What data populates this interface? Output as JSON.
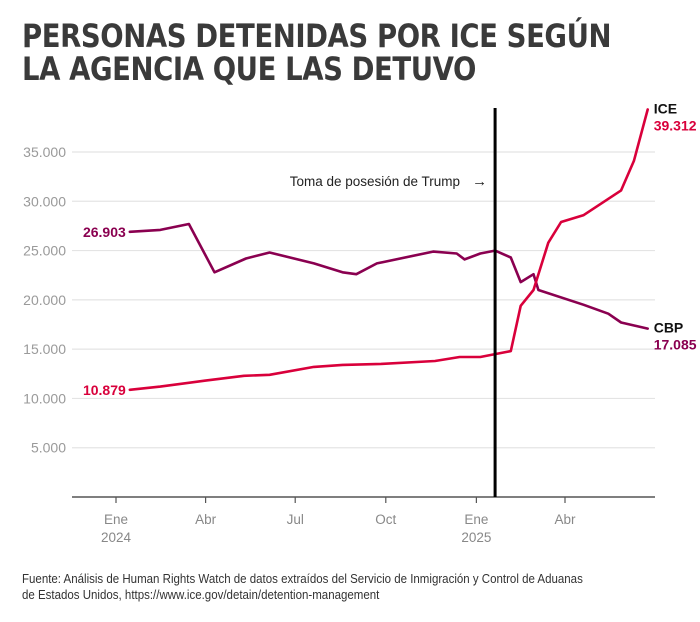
{
  "title_lines": [
    "PERSONAS DETENIDAS POR ICE SEGÚN",
    "LA AGENCIA QUE LAS DETUVO"
  ],
  "source_lines": [
    "Fuente: Análisis de Human Rights Watch de datos extraídos del Servicio de Inmigración y Control de Aduanas",
    "de Estados Unidos, https://www.ice.gov/detain/detention-management"
  ],
  "colors": {
    "ice": "#d9003b",
    "cbp": "#8a0050",
    "grid": "#e4e4e4",
    "axis": "#555555",
    "tick_text": "#9a9a9a",
    "marker": "#000000",
    "title": "#3a3a3a"
  },
  "chart_data": {
    "type": "line",
    "title": "PERSONAS DETENIDAS POR ICE SEGÚN LA AGENCIA QUE LAS DETUVO",
    "xlabel": "",
    "ylabel": "",
    "ylim": [
      0,
      39500
    ],
    "xlim": [
      "2023-11-01",
      "2025-07-05"
    ],
    "grid": true,
    "yticks": [
      5000,
      10000,
      15000,
      20000,
      25000,
      30000,
      35000
    ],
    "ytick_labels": [
      "5.000",
      "10.000",
      "15.000",
      "20.000",
      "25.000",
      "30.000",
      "35.000"
    ],
    "xticks": [
      {
        "date": "2024-01-01",
        "label": "Ene",
        "sublabel": "2024"
      },
      {
        "date": "2024-04-01",
        "label": "Abr",
        "sublabel": ""
      },
      {
        "date": "2024-07-01",
        "label": "Jul",
        "sublabel": ""
      },
      {
        "date": "2024-10-01",
        "label": "Oct",
        "sublabel": ""
      },
      {
        "date": "2025-01-01",
        "label": "Ene",
        "sublabel": "2025"
      },
      {
        "date": "2025-04-01",
        "label": "Abr",
        "sublabel": ""
      }
    ],
    "annotation": {
      "date": "2025-01-20",
      "label": "Toma de posesión de Trump",
      "arrow": "→"
    },
    "series": [
      {
        "name": "ICE",
        "color_key": "ice",
        "start_label": "10.879",
        "end_label": "39.312",
        "points": [
          [
            "2024-01-15",
            10879
          ],
          [
            "2024-02-15",
            11200
          ],
          [
            "2024-03-31",
            11800
          ],
          [
            "2024-05-10",
            12300
          ],
          [
            "2024-06-05",
            12400
          ],
          [
            "2024-07-20",
            13200
          ],
          [
            "2024-08-18",
            13400
          ],
          [
            "2024-09-26",
            13500
          ],
          [
            "2024-11-20",
            13800
          ],
          [
            "2024-12-15",
            14200
          ],
          [
            "2025-01-05",
            14200
          ],
          [
            "2025-01-20",
            14500
          ],
          [
            "2025-02-05",
            14800
          ],
          [
            "2025-02-15",
            19400
          ],
          [
            "2025-02-28",
            21000
          ],
          [
            "2025-03-15",
            25800
          ],
          [
            "2025-03-28",
            27900
          ],
          [
            "2025-04-20",
            28600
          ],
          [
            "2025-05-28",
            31100
          ],
          [
            "2025-06-10",
            34100
          ],
          [
            "2025-06-24",
            39312
          ]
        ]
      },
      {
        "name": "CBP",
        "color_key": "cbp",
        "start_label": "26.903",
        "end_label": "17.085",
        "points": [
          [
            "2024-01-15",
            26903
          ],
          [
            "2024-02-15",
            27100
          ],
          [
            "2024-03-15",
            27700
          ],
          [
            "2024-04-10",
            22800
          ],
          [
            "2024-05-12",
            24200
          ],
          [
            "2024-06-05",
            24800
          ],
          [
            "2024-07-20",
            23700
          ],
          [
            "2024-08-18",
            22800
          ],
          [
            "2024-09-01",
            22600
          ],
          [
            "2024-09-22",
            23700
          ],
          [
            "2024-11-18",
            24900
          ],
          [
            "2024-12-12",
            24700
          ],
          [
            "2024-12-20",
            24100
          ],
          [
            "2025-01-05",
            24700
          ],
          [
            "2025-01-20",
            25000
          ],
          [
            "2025-02-05",
            24300
          ],
          [
            "2025-02-15",
            21800
          ],
          [
            "2025-02-28",
            22600
          ],
          [
            "2025-03-05",
            21000
          ],
          [
            "2025-04-20",
            19500
          ],
          [
            "2025-05-15",
            18600
          ],
          [
            "2025-05-28",
            17700
          ],
          [
            "2025-06-24",
            17085
          ]
        ]
      }
    ]
  }
}
